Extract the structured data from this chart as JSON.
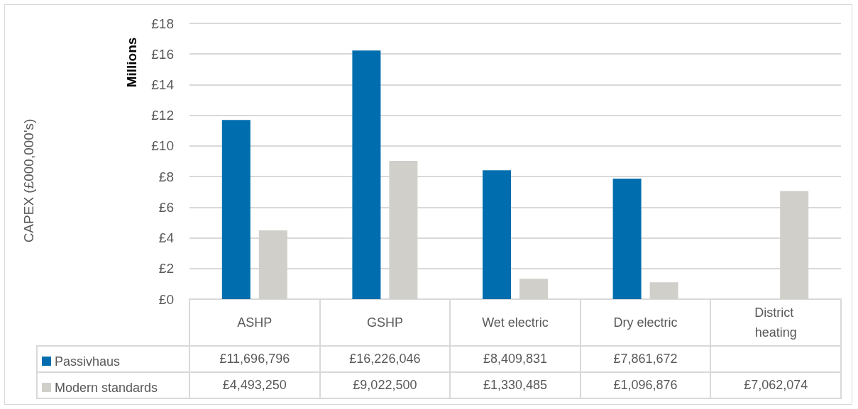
{
  "chart_data": {
    "type": "bar",
    "annotations": [
      "CAPEX (£000,000's)",
      "Millions",
      "£11,696,796",
      "£16,226,046",
      "£8,409,831",
      "£7,861,672",
      "£4,493,250",
      "£9,022,500",
      "£1,330,485",
      "£1,096,876",
      "£7,062,074"
    ],
    "categories": [
      "ASHP",
      "GSHP",
      "Wet electric",
      "Dry electric",
      "District heating"
    ],
    "series": [
      {
        "name": "Passivhaus",
        "color": "#006eae",
        "values": [
          11.696796,
          16.226046,
          8.409831,
          7.861672,
          null
        ]
      },
      {
        "name": "Modern standards",
        "color": "#d0cfca",
        "values": [
          4.49325,
          9.0225,
          1.330485,
          1.096876,
          7.062074
        ]
      }
    ],
    "ylim": [
      0,
      18
    ],
    "yticks": [
      {
        "value": 0,
        "label": "£0"
      },
      {
        "value": 2,
        "label": "£2"
      },
      {
        "value": 4,
        "label": "£4"
      },
      {
        "value": 6,
        "label": "£6"
      },
      {
        "value": 8,
        "label": "£8"
      },
      {
        "value": 10,
        "label": "£10"
      },
      {
        "value": 12,
        "label": "£12"
      },
      {
        "value": 14,
        "label": "£14"
      },
      {
        "value": 16,
        "label": "£16"
      },
      {
        "value": 18,
        "label": "£18"
      }
    ],
    "grid": "y",
    "legend": "bottom left"
  }
}
